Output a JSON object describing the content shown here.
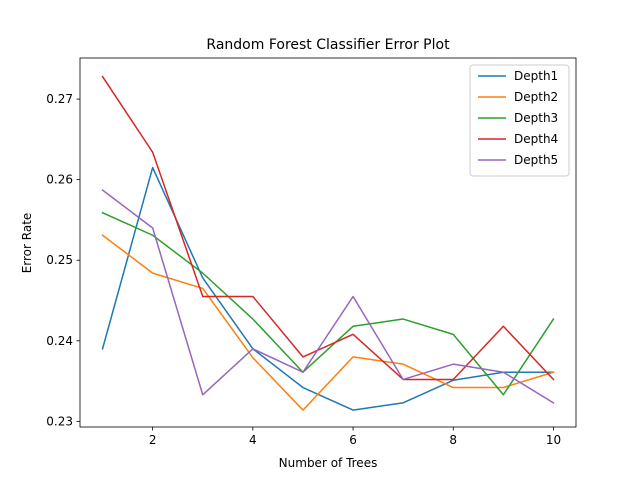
{
  "chart_data": {
    "type": "line",
    "title": "Random Forest Classifier Error Plot",
    "xlabel": "Number of Trees",
    "ylabel": "Error Rate",
    "xlim": [
      0.55,
      10.45
    ],
    "ylim": [
      0.2293,
      0.2751
    ],
    "xticks": [
      2,
      4,
      6,
      8,
      10
    ],
    "yticks": [
      0.23,
      0.24,
      0.25,
      0.26,
      0.27
    ],
    "ytick_labels": [
      "0.23",
      "0.24",
      "0.25",
      "0.26",
      "0.27"
    ],
    "grid": false,
    "legend_position": "top-right",
    "x": [
      1,
      2,
      3,
      4,
      5,
      6,
      7,
      8,
      9,
      10
    ],
    "series": [
      {
        "name": "Depth1",
        "color": "#1f77b4",
        "values": [
          0.239,
          0.2615,
          0.2478,
          0.239,
          0.2342,
          0.2314,
          0.2323,
          0.2351,
          0.2361,
          0.2361
        ]
      },
      {
        "name": "Depth2",
        "color": "#ff7f0e",
        "values": [
          0.2531,
          0.2484,
          0.2465,
          0.2379,
          0.2314,
          0.238,
          0.2371,
          0.2342,
          0.2342,
          0.2361
        ]
      },
      {
        "name": "Depth3",
        "color": "#2ca02c",
        "values": [
          0.2559,
          0.2531,
          0.2484,
          0.2427,
          0.2361,
          0.2418,
          0.2427,
          0.2408,
          0.2333,
          0.2427
        ]
      },
      {
        "name": "Depth4",
        "color": "#d62728",
        "values": [
          0.2728,
          0.2634,
          0.2455,
          0.2455,
          0.238,
          0.2408,
          0.2352,
          0.2352,
          0.2418,
          0.2352
        ]
      },
      {
        "name": "Depth5",
        "color": "#9467bd",
        "values": [
          0.2587,
          0.254,
          0.2333,
          0.239,
          0.2361,
          0.2455,
          0.2352,
          0.2371,
          0.2361,
          0.2323
        ]
      }
    ]
  }
}
